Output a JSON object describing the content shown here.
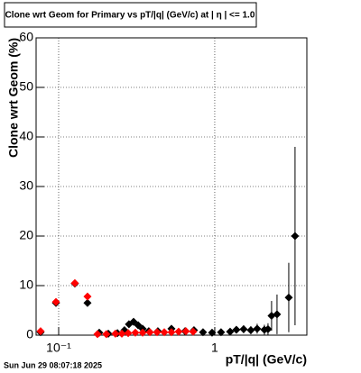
{
  "chart_data": {
    "type": "scatter",
    "title": "Clone wrt Geom for Primary vs pT/|q| (GeV/c) at |  η  | <= 1.0",
    "x_label": "pT/|q| (GeV/c)",
    "y_label": "Clone wrt Geom (%)",
    "footer": "Sun Jun 29 08:07:18 2025",
    "log_x": true,
    "grid": true,
    "xlim": [
      0.0717,
      3.89
    ],
    "ylim": [
      0,
      60
    ],
    "xticks": [
      {
        "value": 0.1,
        "label": "10⁻¹"
      },
      1
    ],
    "yticks": [
      0,
      10,
      20,
      30,
      40,
      50,
      60
    ],
    "series": [
      {
        "color": "#000000",
        "x": [
          0.0766,
          0.0961,
          0.127,
          0.153,
          0.182,
          0.208,
          0.238,
          0.264,
          0.282,
          0.302,
          0.323,
          0.345,
          0.378,
          0.432,
          0.528,
          0.645,
          0.736,
          0.841,
          0.961,
          1.097,
          1.254,
          1.376,
          1.531,
          1.703,
          1.869,
          2.08,
          2.193,
          2.312,
          2.505,
          2.979,
          3.268
        ],
        "values": [
          0.6,
          6.5,
          10.4,
          6.5,
          0.5,
          0.3,
          0.4,
          1.0,
          2.2,
          2.7,
          2.0,
          1.3,
          0.8,
          0.8,
          1.3,
          0.8,
          1.0,
          0.6,
          0.5,
          0.6,
          0.7,
          1.1,
          1.2,
          1.0,
          1.3,
          1.1,
          1.2,
          3.9,
          4.2,
          7.6,
          20
        ],
        "errors": [
          0.5,
          0.5,
          0.5,
          0.5,
          0.3,
          0.3,
          0.3,
          0.4,
          0.5,
          0.5,
          0.5,
          0.4,
          0.3,
          0.3,
          0.4,
          0.4,
          0.5,
          0.4,
          0.4,
          0.5,
          0.5,
          0.7,
          0.8,
          0.8,
          1,
          1,
          1.2,
          3,
          4,
          7,
          18
        ]
      },
      {
        "color": "#ff0000",
        "x": [
          0.0766,
          0.0961,
          0.127,
          0.153,
          0.1773,
          0.202,
          0.231,
          0.254,
          0.279,
          0.31,
          0.345,
          0.384,
          0.427,
          0.475,
          0.528,
          0.587,
          0.653,
          0.727
        ],
        "values": [
          0.8,
          6.7,
          10.5,
          7.8,
          0.2,
          0.2,
          0.3,
          0.3,
          0.4,
          0.5,
          0.5,
          0.6,
          0.6,
          0.6,
          0.6,
          0.7,
          0.8,
          0.7
        ]
      }
    ]
  }
}
